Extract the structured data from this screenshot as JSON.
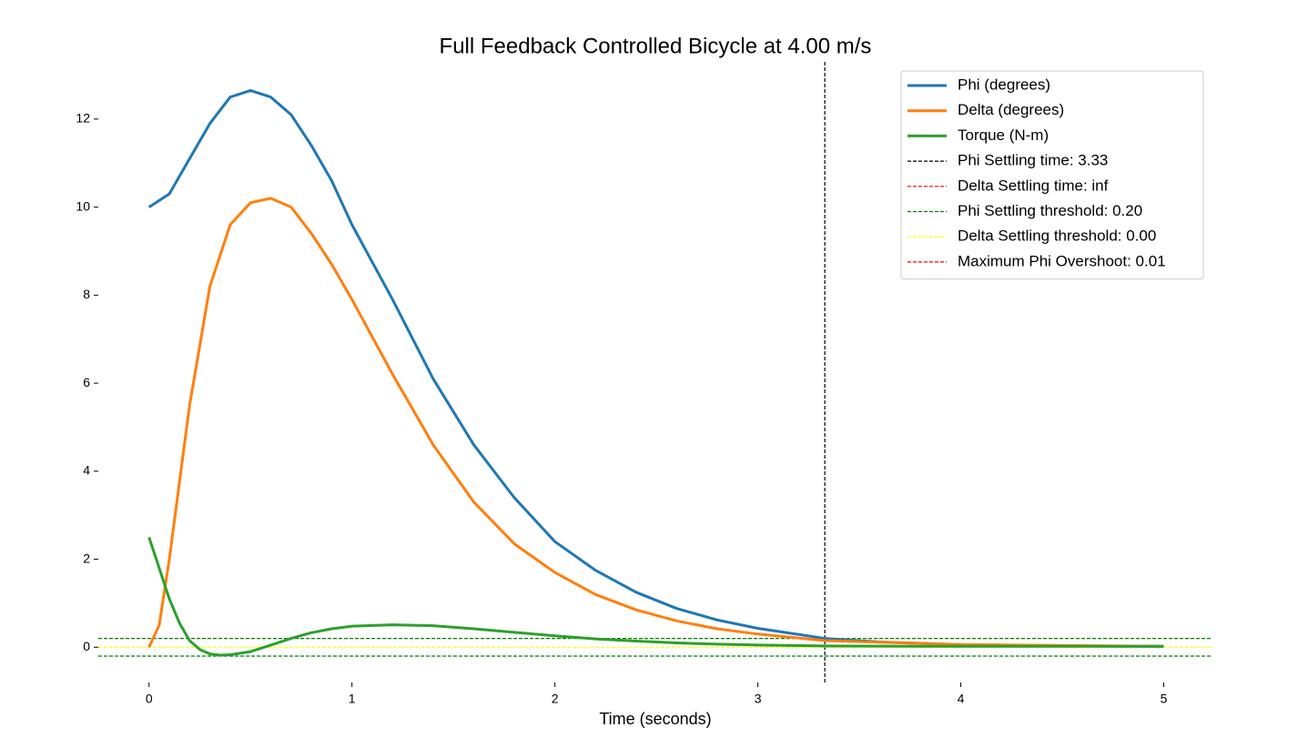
{
  "chart_data": {
    "type": "line",
    "title": "Full Feedback Controlled Bicycle at 4.00 m/s",
    "x_label": "Time (seconds)",
    "xlim": [
      -0.25,
      5.24
    ],
    "ylim": [
      -0.8,
      13.3
    ],
    "xticks": [
      0,
      1,
      2,
      3,
      4,
      5
    ],
    "yticks": [
      0,
      2,
      4,
      6,
      8,
      10,
      12
    ],
    "grid": false,
    "legend": "upper right",
    "series": [
      {
        "name": "Phi (degrees)",
        "color": "#1f77b4",
        "x": [
          0,
          0.1,
          0.2,
          0.3,
          0.4,
          0.5,
          0.6,
          0.7,
          0.8,
          0.9,
          1.0,
          1.2,
          1.4,
          1.6,
          1.8,
          2.0,
          2.2,
          2.4,
          2.6,
          2.8,
          3.0,
          3.33,
          3.6,
          4.0,
          4.5,
          5.0
        ],
        "values": [
          10,
          10.3,
          11.1,
          11.9,
          12.5,
          12.65,
          12.5,
          12.1,
          11.4,
          10.6,
          9.6,
          7.9,
          6.1,
          4.6,
          3.4,
          2.4,
          1.75,
          1.25,
          0.88,
          0.62,
          0.43,
          0.2,
          0.12,
          0.06,
          0.03,
          0.02
        ]
      },
      {
        "name": "Delta (degrees)",
        "color": "#ff7f0e",
        "x": [
          0,
          0.05,
          0.1,
          0.2,
          0.3,
          0.4,
          0.5,
          0.6,
          0.7,
          0.8,
          0.9,
          1.0,
          1.2,
          1.4,
          1.6,
          1.8,
          2.0,
          2.2,
          2.4,
          2.6,
          2.8,
          3.0,
          3.33,
          4.0,
          5.0
        ],
        "values": [
          0,
          0.5,
          2,
          5.5,
          8.2,
          9.6,
          10.1,
          10.2,
          10,
          9.4,
          8.7,
          7.9,
          6.2,
          4.6,
          3.3,
          2.35,
          1.7,
          1.2,
          0.85,
          0.6,
          0.42,
          0.3,
          0.15,
          0.06,
          0.02
        ]
      },
      {
        "name": "Torque (N-m)",
        "color": "#2ca02c",
        "x": [
          0,
          0.05,
          0.1,
          0.15,
          0.2,
          0.25,
          0.3,
          0.35,
          0.4,
          0.5,
          0.6,
          0.7,
          0.8,
          0.9,
          1.0,
          1.2,
          1.4,
          1.6,
          1.8,
          2.0,
          2.2,
          2.4,
          2.6,
          2.8,
          3.0,
          3.33,
          4.0,
          5.0
        ],
        "values": [
          2.5,
          1.8,
          1.1,
          0.55,
          0.15,
          -0.05,
          -0.15,
          -0.18,
          -0.17,
          -0.1,
          0.05,
          0.2,
          0.33,
          0.42,
          0.48,
          0.51,
          0.49,
          0.42,
          0.34,
          0.26,
          0.19,
          0.14,
          0.1,
          0.07,
          0.05,
          0.03,
          0.02,
          0.02
        ]
      }
    ],
    "reference_lines": [
      {
        "name": "Phi Settling time: 3.33",
        "color": "#000000",
        "orientation": "vertical",
        "values": [
          3.33
        ]
      },
      {
        "name": "Delta Settling time: inf",
        "color": "#ff0000",
        "orientation": "vertical",
        "values": []
      },
      {
        "name": "Phi Settling threshold: 0.20",
        "color": "#008000",
        "orientation": "horizontal",
        "values": [
          0.2,
          -0.2
        ]
      },
      {
        "name": "Delta Settling threshold: 0.00",
        "color": "#ffff00",
        "orientation": "horizontal",
        "values": [
          0
        ]
      },
      {
        "name": "Maximum Phi Overshoot: 0.01",
        "color": "#ff0000",
        "orientation": "horizontal",
        "values": []
      }
    ]
  }
}
